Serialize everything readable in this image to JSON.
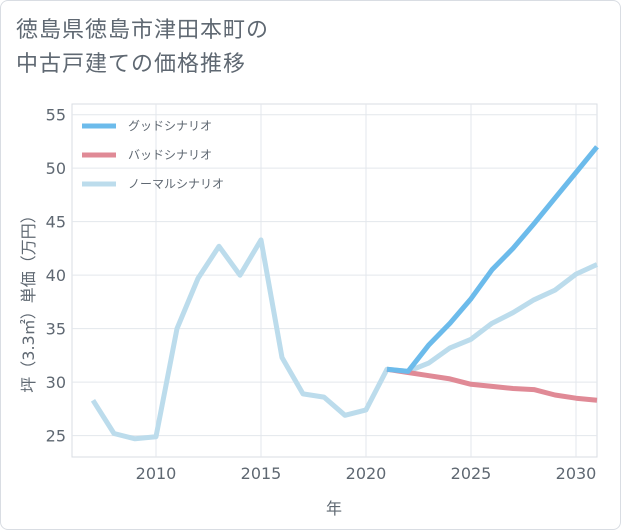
{
  "title_lines": [
    "徳島県徳島市津田本町の",
    "中古戸建ての価格推移"
  ],
  "chart_data": {
    "type": "line",
    "xlabel": "年",
    "ylabel": "坪（3.3㎡）単価（万円）",
    "xlim": [
      2006,
      2031
    ],
    "ylim": [
      23,
      56
    ],
    "x_ticks": [
      2010,
      2015,
      2020,
      2025,
      2030
    ],
    "y_ticks": [
      25,
      30,
      35,
      40,
      45,
      50,
      55
    ],
    "grid": true,
    "legend_position": "top-left",
    "series": [
      {
        "name": "グッドシナリオ",
        "color": "#6cbbeb",
        "x": [
          2021,
          2022,
          2023,
          2024,
          2025,
          2026,
          2027,
          2028,
          2029,
          2030,
          2031
        ],
        "values": [
          31.2,
          31.0,
          33.5,
          35.5,
          37.8,
          40.5,
          42.5,
          44.8,
          47.2,
          49.6,
          52.0
        ]
      },
      {
        "name": "バッドシナリオ",
        "color": "#e08a96",
        "x": [
          2021,
          2022,
          2023,
          2024,
          2025,
          2026,
          2027,
          2028,
          2029,
          2030,
          2031
        ],
        "values": [
          31.2,
          30.9,
          30.6,
          30.3,
          29.8,
          29.6,
          29.4,
          29.3,
          28.8,
          28.5,
          28.3
        ]
      },
      {
        "name": "ノーマルシナリオ",
        "color": "#bcdcec",
        "x": [
          2007,
          2008,
          2009,
          2010,
          2011,
          2012,
          2013,
          2014,
          2015,
          2016,
          2017,
          2018,
          2019,
          2020,
          2021,
          2022,
          2023,
          2024,
          2025,
          2026,
          2027,
          2028,
          2029,
          2030,
          2031
        ],
        "values": [
          28.3,
          25.2,
          24.7,
          24.9,
          35.0,
          39.7,
          42.7,
          40.0,
          43.3,
          32.3,
          28.9,
          28.6,
          26.9,
          27.4,
          31.2,
          31.0,
          31.8,
          33.2,
          34.0,
          35.5,
          36.5,
          37.7,
          38.6,
          40.1,
          41.0
        ]
      }
    ]
  }
}
